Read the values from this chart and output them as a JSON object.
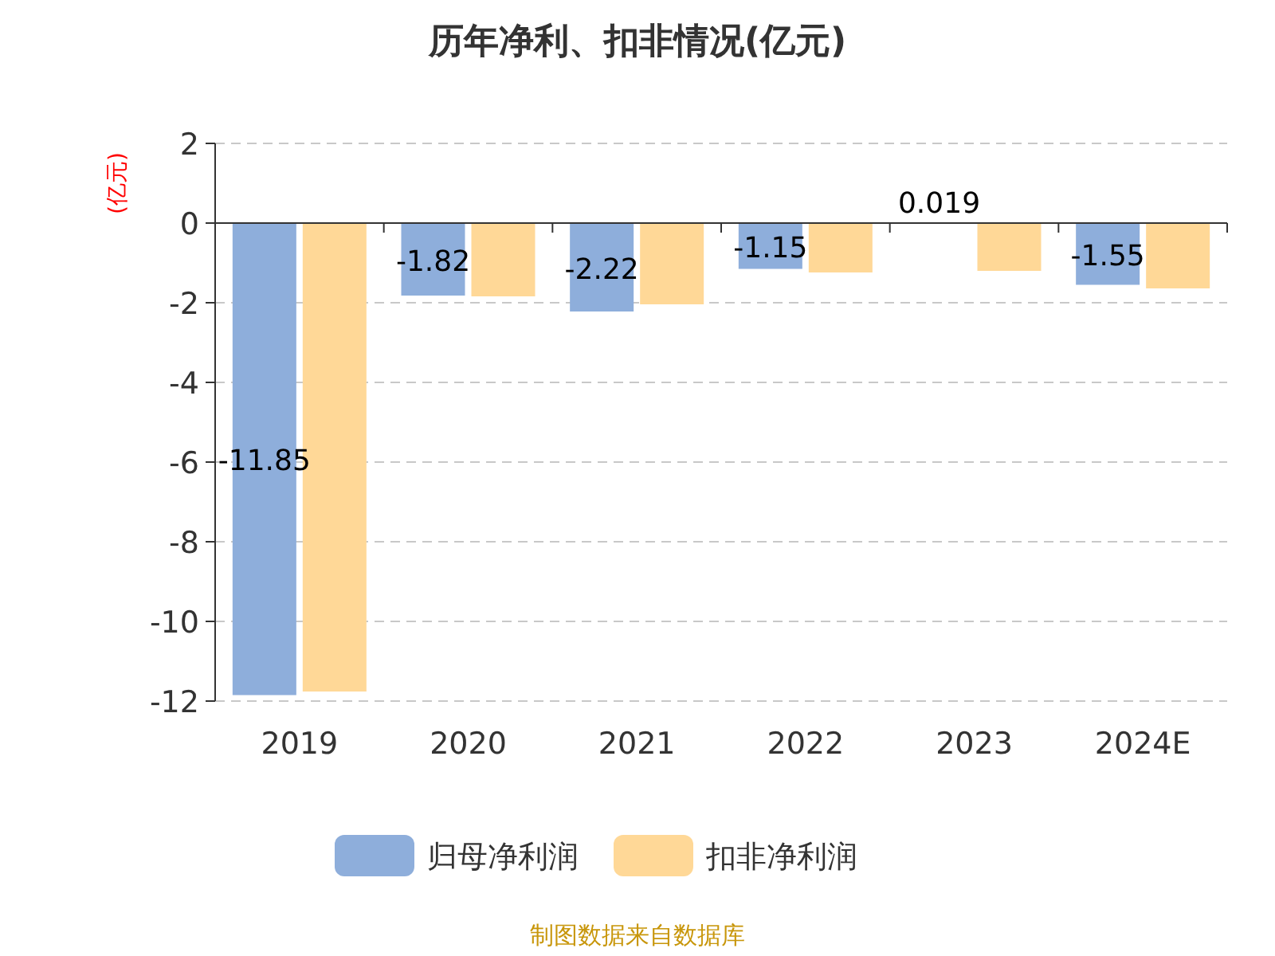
{
  "chart_data": {
    "type": "bar",
    "title": "历年净利、扣非情况(亿元)",
    "ylabel": "(亿元)",
    "categories": [
      "2019",
      "2020",
      "2021",
      "2022",
      "2023",
      "2024E"
    ],
    "series": [
      {
        "name": "归母净利润",
        "color": "#8eaedb",
        "values": [
          -11.85,
          -1.82,
          -2.22,
          -1.15,
          0.019,
          -1.55
        ],
        "value_labels": [
          "-11.85",
          "-1.82",
          "-2.22",
          "-1.15",
          "0.019",
          "-1.55"
        ]
      },
      {
        "name": "扣非净利润",
        "color": "#ffd897",
        "values": [
          -11.76,
          -1.84,
          -2.04,
          -1.24,
          -1.2,
          -1.64
        ]
      }
    ],
    "ylim": [
      -12,
      2
    ],
    "yticks": [
      -12,
      -10,
      -8,
      -6,
      -4,
      -2,
      0,
      2
    ],
    "grid": "y",
    "legend": "bottom",
    "annotations": [
      "制图数据来自数据库"
    ]
  }
}
